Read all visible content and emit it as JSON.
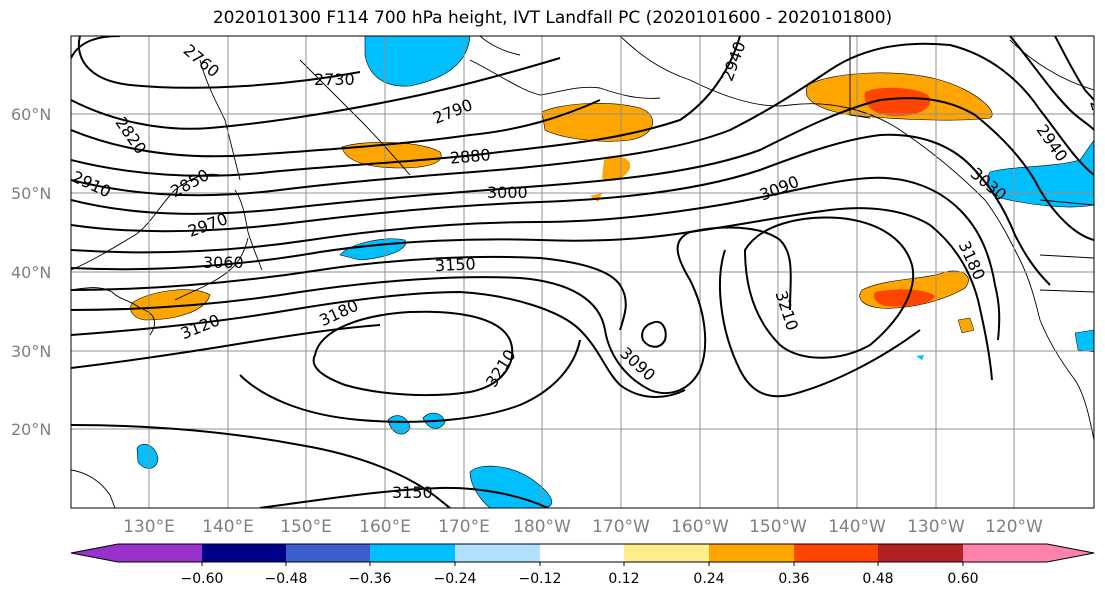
{
  "title": "2020101300 F114 700 hPa height, IVT Landfall PC (2020101600 - 2020101800)",
  "map": {
    "lat_labels": [
      "60°N",
      "50°N",
      "40°N",
      "30°N",
      "20°N"
    ],
    "lon_labels": [
      "130°E",
      "140°E",
      "150°E",
      "160°E",
      "170°E",
      "180°W",
      "170°W",
      "160°W",
      "150°W",
      "140°W",
      "130°W",
      "120°W"
    ],
    "contour_labels": [
      "2730",
      "2760",
      "2790",
      "2820",
      "2850",
      "2880",
      "2910",
      "2940",
      "2970",
      "3000",
      "3030",
      "3060",
      "3090",
      "3120",
      "3150",
      "3180",
      "3210"
    ],
    "colors": {
      "neg_strong": "#9932cc",
      "neg_navy": "#00008b",
      "neg_blue": "#3a5fcd",
      "neg_sky": "#00bfff",
      "neg_light": "#b0e2ff",
      "neutral": "#ffffff",
      "pos_yellow": "#ffec8b",
      "pos_orange": "#ffa500",
      "pos_red": "#ff4500",
      "pos_firebrick": "#b22222",
      "pos_pink": "#ff82ab"
    }
  },
  "colorbar": {
    "ticks": [
      "−0.60",
      "−0.48",
      "−0.36",
      "−0.24",
      "−0.12",
      "0.12",
      "0.24",
      "0.36",
      "0.48",
      "0.60"
    ]
  }
}
